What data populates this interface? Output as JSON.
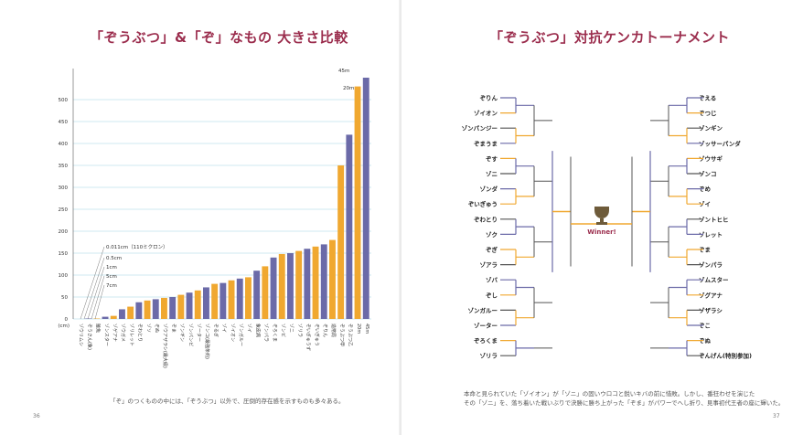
{
  "left_page": {
    "title": "「ぞうぶつ」&「ぞ」なもの 大きさ比較",
    "caption": "「ぞ」のつくものの中には、「ぞうぶつ」以外で、圧倒的存在感を示すものも多々ある。",
    "page_number": "36"
  },
  "right_page": {
    "title": "「ぞうぶつ」対抗ケンカトーナメント",
    "caption_lines": [
      "本命と見られていた「ゾイオン」が「ゾニ」の固いウロコと鋭いキバの前に惜敗。しかし、番狂わせを演じた",
      "その「ゾニ」を、落ち着いた戦いぶりで決勝に勝ち上がった「ぞま」がパワーでへし折り、見事初代王者の座に輝いた。"
    ],
    "page_number": "37",
    "winner_label": "Winner!",
    "trophy": "trophy-icon"
  },
  "colors": {
    "title": "#9b2d4d",
    "bar_purple": "#6b6aa8",
    "bar_orange": "#f0a830",
    "grid": "#9fd3e6"
  },
  "chart_data": {
    "type": "bar",
    "ylabel": "(cm)",
    "ylim": [
      0,
      550
    ],
    "yticks": [
      0,
      50,
      100,
      150,
      200,
      250,
      300,
      350,
      400,
      450,
      500
    ],
    "series_colors": [
      "#6b6aa8",
      "#f0a830"
    ],
    "categories": [
      "ゾウリムシ",
      "ぞうさん(象)",
      "雑魚",
      "ゾンスター",
      "ゾゲアナ",
      "ゾウガメ",
      "ゾリレット",
      "ぞわとり",
      "ゾソ",
      "ぞぬ",
      "ゾウアザラシ(最大級)",
      "ぞま",
      "ゾンギン",
      "ゾンパンビ",
      "ゾーター",
      "ゾンコ(最強条約)",
      "ぞるぎ",
      "ゾイ",
      "ゾイオン",
      "ゾンガルー",
      "ゾイ",
      "象皮病",
      "ゾンパラ",
      "ぞろくま",
      "ゾンビ",
      "ゾニ",
      "ゾリラ",
      "ぞいぎゅうず",
      "ぞいぎゅう",
      "ぞりん",
      "造幣局"
    ],
    "values": [
      0,
      1,
      1,
      5,
      7,
      22,
      28,
      38,
      42,
      45,
      48,
      50,
      55,
      60,
      65,
      72,
      80,
      82,
      88,
      92,
      95,
      110,
      120,
      140,
      148,
      150,
      155,
      160,
      165,
      170,
      180
    ],
    "colors_index": [
      0,
      0,
      1,
      0,
      1,
      0,
      1,
      0,
      1,
      0,
      1,
      0,
      1,
      0,
      1,
      0,
      1,
      0,
      1,
      0,
      1,
      0,
      1,
      0,
      1,
      0,
      1,
      0,
      1,
      0,
      1
    ],
    "extra_bars": [
      {
        "label": "ぞうぶつ甲",
        "value": 350,
        "color": 1
      },
      {
        "label": "ぞうぶつ乙",
        "value": 420,
        "color": 0
      },
      {
        "label": "20m",
        "value": 530,
        "color": 1
      },
      {
        "label": "45m",
        "value": 560,
        "color": 0
      }
    ],
    "annotations": [
      "0.011cm（110ミクロン）",
      "0.5cm",
      "1cm",
      "5cm",
      "7cm",
      "20m",
      "45m"
    ]
  },
  "bracket": {
    "left": [
      "ぞりん",
      "ゾイオン",
      "ゾンパンジー",
      "ぞまうま",
      "ぞす",
      "ゾニ",
      "ゾンダ",
      "ぞいぎゅう",
      "ぞわとり",
      "ゾク",
      "ぞぎ",
      "ゾアラ",
      "ゾバ",
      "ぞし",
      "ゾンガルー",
      "ゾーター",
      "ぞろくま",
      "ゾリラ"
    ],
    "right": [
      "ぞえる",
      "ぞつじ",
      "ゾンギン",
      "ゾッサーパンダ",
      "ゾウサギ",
      "ゾンコ",
      "ぞめ",
      "ゾイ",
      "ゾントヒヒ",
      "ゾレット",
      "ぞま",
      "ゾンパラ",
      "ゾムスター",
      "ゾグアナ",
      "ゾザラシ",
      "ぞこ",
      "ぞぬ",
      "ぞんげん(特別参加)"
    ]
  }
}
